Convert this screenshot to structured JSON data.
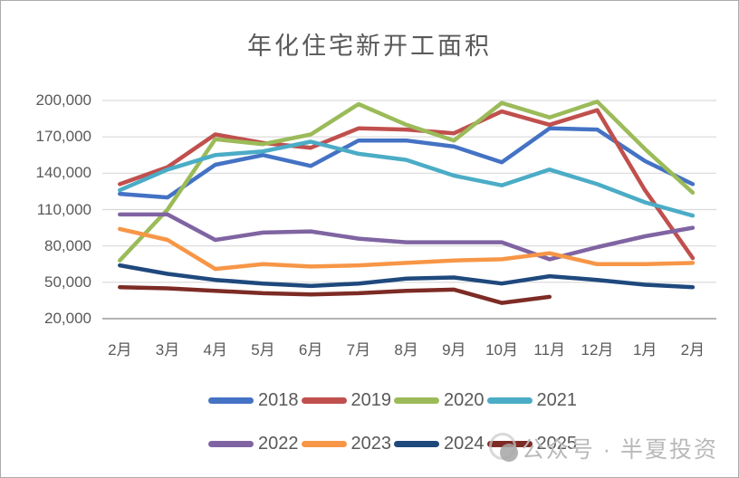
{
  "title": "年化住宅新开工面积",
  "watermark": {
    "text": "公众号 · 半夏投资"
  },
  "chart_data": {
    "type": "line",
    "title": "年化住宅新开工面积",
    "xlabel": "",
    "ylabel": "",
    "categories": [
      "2月",
      "3月",
      "4月",
      "5月",
      "6月",
      "7月",
      "8月",
      "9月",
      "10月",
      "11月",
      "12月",
      "1月",
      "2月"
    ],
    "ylim": [
      20000,
      200000
    ],
    "ytick_step": 30000,
    "yticks": [
      {
        "value": 200000,
        "label": "200,000"
      },
      {
        "value": 170000,
        "label": "170,000"
      },
      {
        "value": 140000,
        "label": "140,000"
      },
      {
        "value": 110000,
        "label": "110,000"
      },
      {
        "value": 80000,
        "label": "80,000"
      },
      {
        "value": 50000,
        "label": "50,000"
      },
      {
        "value": 20000,
        "label": "20,000"
      }
    ],
    "grid": "horizontal",
    "legend_position": "bottom",
    "legend_rows": [
      [
        "2018",
        "2019",
        "2020",
        "2021"
      ],
      [
        "2022",
        "2023",
        "2024",
        "2025"
      ]
    ],
    "series": [
      {
        "name": "2018",
        "color": "#4472C4",
        "values": [
          123000,
          120000,
          147000,
          155000,
          146000,
          167000,
          167000,
          162000,
          149000,
          177000,
          176000,
          150000,
          131000
        ]
      },
      {
        "name": "2019",
        "color": "#C0504D",
        "values": [
          131000,
          145000,
          172000,
          165000,
          161000,
          177000,
          176000,
          173000,
          191000,
          180000,
          192000,
          126000,
          70000
        ]
      },
      {
        "name": "2020",
        "color": "#9BBB59",
        "values": [
          68000,
          110000,
          168000,
          164000,
          172000,
          197000,
          180000,
          167000,
          198000,
          186000,
          199000,
          160000,
          124000
        ]
      },
      {
        "name": "2021",
        "color": "#4BACC6",
        "values": [
          126000,
          143000,
          155000,
          158000,
          166000,
          156000,
          151000,
          138000,
          130000,
          143000,
          131000,
          116000,
          105000
        ]
      },
      {
        "name": "2022",
        "color": "#8064A2",
        "values": [
          106000,
          106000,
          85000,
          91000,
          92000,
          86000,
          83000,
          83000,
          83000,
          69000,
          79000,
          88000,
          95000
        ]
      },
      {
        "name": "2023",
        "color": "#F79646",
        "values": [
          94000,
          85000,
          61000,
          65000,
          63000,
          64000,
          66000,
          68000,
          69000,
          74000,
          65000,
          65000,
          66000
        ]
      },
      {
        "name": "2024",
        "color": "#1F497D",
        "values": [
          64000,
          57000,
          52000,
          49000,
          47000,
          49000,
          53000,
          54000,
          49000,
          55000,
          52000,
          48000,
          46000
        ]
      },
      {
        "name": "2025",
        "color": "#7D2B25",
        "values": [
          46000,
          45000,
          43000,
          41000,
          40000,
          41000,
          43000,
          44000,
          33000,
          38000
        ]
      }
    ],
    "colors": {
      "grid": "#d9d9d9",
      "axis": "#9a9a9a",
      "text": "#595959"
    }
  }
}
